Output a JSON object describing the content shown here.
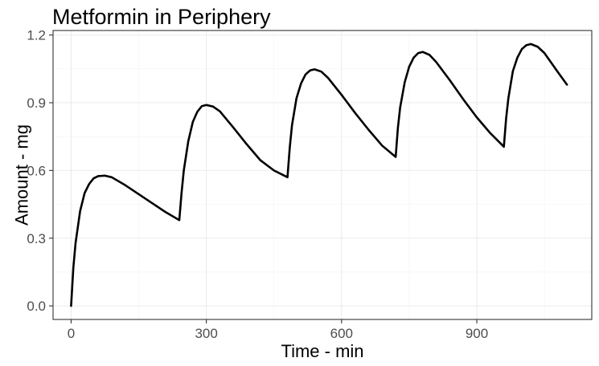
{
  "chart_data": {
    "type": "line",
    "title": "Metformin in Periphery",
    "xlabel": "Time - min",
    "ylabel": "Amount - mg",
    "xlim": [
      -40,
      1155
    ],
    "ylim": [
      -0.06,
      1.22
    ],
    "x_ticks": [
      0,
      300,
      600,
      900
    ],
    "x_tick_labels": [
      "0",
      "300",
      "600",
      "900"
    ],
    "y_ticks": [
      0.0,
      0.3,
      0.6,
      0.9,
      1.2
    ],
    "y_tick_labels": [
      "0.0",
      "0.3",
      "0.6",
      "0.9",
      "1.2"
    ],
    "grid": true,
    "legend": "none",
    "series": [
      {
        "color": "#000000",
        "x": [
          0,
          5,
          10,
          20,
          30,
          40,
          50,
          60,
          75,
          90,
          120,
          150,
          180,
          210,
          240,
          245,
          250,
          260,
          270,
          280,
          290,
          300,
          315,
          330,
          360,
          390,
          420,
          450,
          480,
          485,
          490,
          500,
          510,
          520,
          530,
          540,
          555,
          570,
          600,
          630,
          660,
          690,
          720,
          725,
          730,
          740,
          750,
          760,
          770,
          780,
          795,
          810,
          840,
          870,
          900,
          930,
          960,
          965,
          970,
          980,
          990,
          1000,
          1010,
          1020,
          1035,
          1050,
          1080,
          1100
        ],
        "y": [
          0.0,
          0.17,
          0.28,
          0.42,
          0.5,
          0.54,
          0.565,
          0.575,
          0.577,
          0.57,
          0.535,
          0.495,
          0.455,
          0.415,
          0.38,
          0.5,
          0.6,
          0.73,
          0.815,
          0.86,
          0.885,
          0.89,
          0.883,
          0.862,
          0.79,
          0.715,
          0.645,
          0.6,
          0.57,
          0.7,
          0.8,
          0.92,
          0.985,
          1.025,
          1.043,
          1.048,
          1.038,
          1.01,
          0.935,
          0.855,
          0.78,
          0.71,
          0.66,
          0.79,
          0.88,
          0.99,
          1.06,
          1.1,
          1.12,
          1.125,
          1.112,
          1.08,
          1.0,
          0.915,
          0.835,
          0.765,
          0.705,
          0.83,
          0.92,
          1.04,
          1.1,
          1.138,
          1.155,
          1.16,
          1.148,
          1.12,
          1.035,
          0.98
        ]
      }
    ]
  }
}
